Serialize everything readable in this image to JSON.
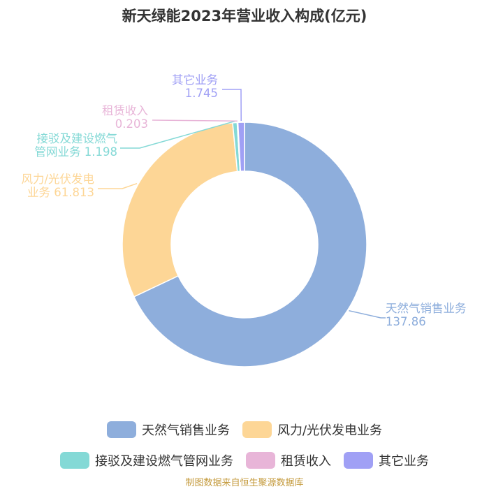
{
  "chart_data": {
    "type": "pie",
    "title": "新天绿能2023年营业收入构成(亿元)",
    "donut": true,
    "series": [
      {
        "name": "天然气销售业务",
        "value": 137.86,
        "value_label": "137.86",
        "color": "#8eaedc",
        "label_lines": [
          "天然气销售业务",
          "137.86"
        ]
      },
      {
        "name": "风力/光伏发电业务",
        "value": 61.813,
        "value_label": "61.813",
        "color": "#fdd696",
        "label_lines": [
          "风力/光伏发电",
          "业务 61.813"
        ]
      },
      {
        "name": "接驳及建设燃气管网业务",
        "value": 1.198,
        "value_label": "1.198",
        "color": "#84d9d6",
        "label_lines": [
          "接驳及建设燃气",
          "管网业务 1.198"
        ]
      },
      {
        "name": "租赁收入",
        "value": 0.203,
        "value_label": "0.203",
        "color": "#e8b5d8",
        "label_lines": [
          "租赁收入",
          "0.203"
        ]
      },
      {
        "name": "其它业务",
        "value": 1.745,
        "value_label": "1.745",
        "color": "#a0a0f5",
        "label_lines": [
          "其它业务",
          "1.745"
        ]
      }
    ],
    "legend_rows": [
      [
        0,
        1
      ],
      [
        2,
        3,
        4
      ]
    ]
  },
  "source": "制图数据来自恒生聚源数据库"
}
